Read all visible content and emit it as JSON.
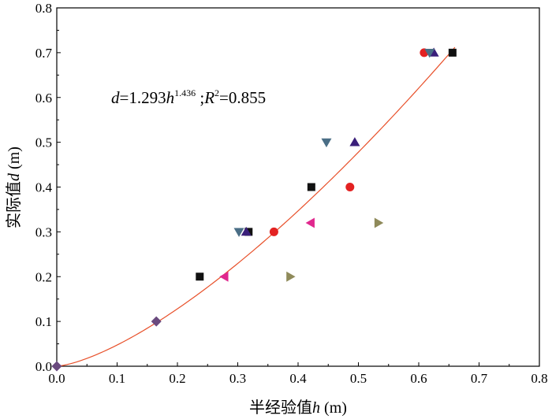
{
  "chart_data": {
    "type": "scatter",
    "xlabel": {
      "prefix": "半经验值",
      "var": "h",
      "unit": " (m)"
    },
    "ylabel": {
      "prefix": "实际值",
      "var": "d",
      "unit": " (m)"
    },
    "xlim": [
      0,
      0.8
    ],
    "ylim": [
      0,
      0.8
    ],
    "xticks": [
      "0.0",
      "0.1",
      "0.2",
      "0.3",
      "0.4",
      "0.5",
      "0.6",
      "0.7",
      "0.8"
    ],
    "yticks": [
      "0.0",
      "0.1",
      "0.2",
      "0.3",
      "0.4",
      "0.5",
      "0.6",
      "0.7",
      "0.8"
    ],
    "grid": false,
    "equation": {
      "lhs": "d",
      "eq": "=1.293",
      "base": "h",
      "exp": "1.436",
      "sep": " ;",
      "r": "R",
      "r_exp": "2",
      "r_val": "=0.855"
    },
    "fit": {
      "coef": 1.293,
      "power": 1.436,
      "x_range": [
        0,
        0.66
      ],
      "color": "#e8502a"
    },
    "series": [
      {
        "marker": "square",
        "color": "#111111",
        "points": [
          [
            0.237,
            0.2
          ],
          [
            0.318,
            0.3
          ],
          [
            0.422,
            0.4
          ],
          [
            0.656,
            0.7
          ]
        ]
      },
      {
        "marker": "circle",
        "color": "#e32222",
        "points": [
          [
            0.36,
            0.3
          ],
          [
            0.486,
            0.4
          ],
          [
            0.609,
            0.7
          ]
        ]
      },
      {
        "marker": "triangle-up",
        "color": "#3a1f7a",
        "points": [
          [
            0.314,
            0.3
          ],
          [
            0.494,
            0.5
          ],
          [
            0.625,
            0.7
          ]
        ]
      },
      {
        "marker": "triangle-down",
        "color": "#4a6e86",
        "points": [
          [
            0.302,
            0.3
          ],
          [
            0.447,
            0.5
          ],
          [
            0.618,
            0.7
          ]
        ]
      },
      {
        "marker": "diamond",
        "color": "#6a4a7e",
        "points": [
          [
            0.0,
            0.0
          ],
          [
            0.165,
            0.1
          ]
        ]
      },
      {
        "marker": "triangle-left",
        "color": "#e0288e",
        "points": [
          [
            0.278,
            0.2
          ],
          [
            0.421,
            0.32
          ]
        ]
      },
      {
        "marker": "triangle-right",
        "color": "#8f8a5a",
        "points": [
          [
            0.387,
            0.2
          ],
          [
            0.533,
            0.32
          ]
        ]
      }
    ]
  }
}
